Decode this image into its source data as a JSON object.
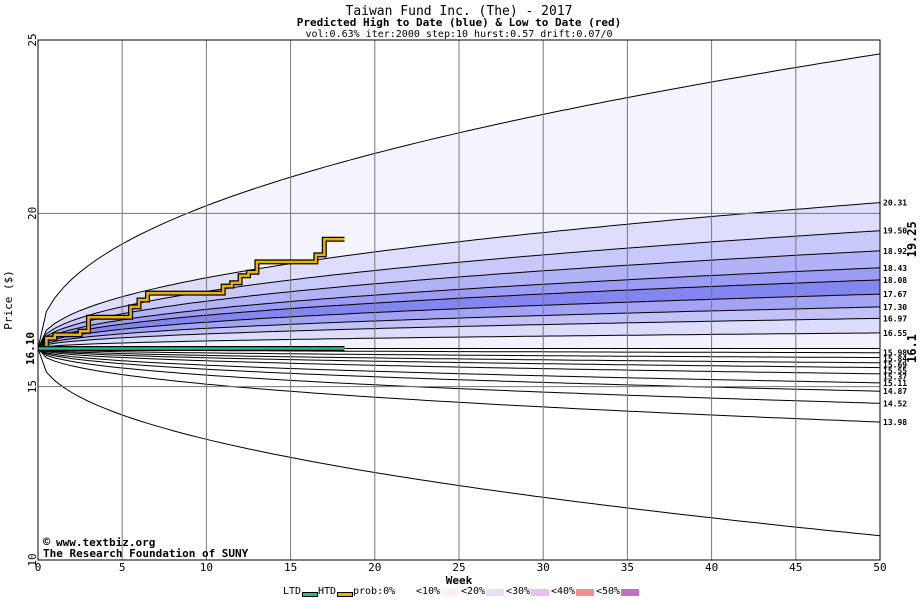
{
  "chart_data": {
    "type": "area",
    "title": "Taiwan Fund Inc. (The) - 2017",
    "subtitle": "Predicted High to Date (blue) &  Low to Date (red)",
    "params": "vol:0.63% iter:2000 step:10 hurst:0.57 drift:0.07/0",
    "xlabel": "Week",
    "ylabel": "Price ($)",
    "xlim": [
      0,
      50
    ],
    "ylim": [
      10,
      25
    ],
    "xticks": [
      "0",
      "5",
      "10",
      "15",
      "20",
      "25",
      "30",
      "35",
      "40",
      "45",
      "50"
    ],
    "yticks": [
      "10",
      "15",
      "20",
      "25"
    ],
    "grid": true,
    "start_label": "16.10",
    "start_price": 16.1,
    "high_to_date_label": "19.25",
    "low_to_date_label": "16.1",
    "watermark": [
      "www.textbiz.org",
      "The Research Foundation of SUNY"
    ],
    "end_labels": [
      "20.31",
      "19.50",
      "18.92",
      "18.43",
      "18.08",
      "17.67",
      "17.30",
      "16.97",
      "16.55",
      "15.98",
      "15.84",
      "15.69",
      "15.55",
      "15.37",
      "15.11",
      "14.87",
      "14.52",
      "13.98"
    ],
    "high_quantiles": [
      {
        "end": 24.6,
        "prob": "<10%",
        "color": "#f4f4ff"
      },
      {
        "end": 20.31,
        "prob": "<20%",
        "color": "#dedefc"
      },
      {
        "end": 19.5,
        "prob": "<30%",
        "color": "#c8c8fa"
      },
      {
        "end": 18.92,
        "prob": "<30%",
        "color": "#b2b2f7"
      },
      {
        "end": 18.43,
        "prob": "<40%",
        "color": "#9c9cf4"
      },
      {
        "end": 18.08,
        "prob": "<50%",
        "color": "#8585f0"
      },
      {
        "end": 17.67,
        "prob": "<40%",
        "color": "#a3a3f5"
      },
      {
        "end": 17.3,
        "prob": "<30%",
        "color": "#c2c2f9"
      },
      {
        "end": 16.97,
        "prob": "<20%",
        "color": "#dcdcfc"
      },
      {
        "end": 16.55,
        "prob": "<10%",
        "color": "#f2f2ff"
      }
    ],
    "low_quantiles": [
      {
        "end": 15.98,
        "prob": "<10%",
        "color": "#ffd8d8"
      },
      {
        "end": 15.84,
        "prob": "<20%",
        "color": "#ffbcbc"
      },
      {
        "end": 15.69,
        "prob": "<30%",
        "color": "#ffa0a0"
      },
      {
        "end": 15.55,
        "prob": "<40%",
        "color": "#ff8888"
      },
      {
        "end": 15.37,
        "prob": "<50%",
        "color": "#f87878"
      },
      {
        "end": 15.11,
        "prob": "<40%",
        "color": "#ff9c9c"
      },
      {
        "end": 14.87,
        "prob": "<30%",
        "color": "#ffbaba"
      },
      {
        "end": 14.52,
        "prob": "<20%",
        "color": "#ffd2d2"
      },
      {
        "end": 13.98,
        "prob": "<10%",
        "color": "#ffeeee"
      },
      {
        "end": 10.7,
        "prob": "0%",
        "color": "#ffffff"
      }
    ],
    "series": [
      {
        "name": "HTD",
        "color": "#f0b000",
        "x": [
          0,
          0.5,
          1,
          1.5,
          2.5,
          3,
          3.5,
          5,
          5.5,
          6,
          6.5,
          7,
          10.5,
          11,
          11.5,
          12,
          12.5,
          13,
          16,
          16.5,
          17,
          18.2
        ],
        "y": [
          16.1,
          16.4,
          16.5,
          16.5,
          16.6,
          17.0,
          17.0,
          17.0,
          17.3,
          17.5,
          17.7,
          17.7,
          17.7,
          17.9,
          18.0,
          18.2,
          18.3,
          18.6,
          18.6,
          18.8,
          19.25,
          19.25
        ]
      },
      {
        "name": "LTD",
        "color": "#20c090",
        "x": [
          0,
          18.2
        ],
        "y": [
          16.1,
          16.1
        ]
      }
    ],
    "legend": [
      {
        "label": "LTD",
        "color": "#20c090"
      },
      {
        "label": "HTD",
        "color": "#f0b000"
      },
      {
        "label": "prob:0%",
        "color": "#ffffff"
      },
      {
        "label": "<10%",
        "color": "#fff0f0"
      },
      {
        "label": "<20%",
        "color": "#ecdcf4"
      },
      {
        "label": "<30%",
        "color": "#e8c0f0"
      },
      {
        "label": "<40%",
        "color": "#f09090"
      },
      {
        "label": "<50%",
        "color": "#c070c0"
      }
    ]
  }
}
